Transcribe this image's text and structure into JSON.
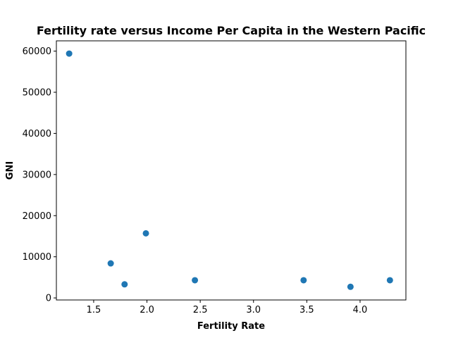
{
  "chart_data": {
    "type": "scatter",
    "title": "Fertility rate versus Income Per Capita in the Western Pacific",
    "xlabel": "Fertility Rate",
    "ylabel": "GNI",
    "xlim": [
      1.15,
      4.43
    ],
    "ylim": [
      -500,
      62500
    ],
    "xticks": [
      1.5,
      2.0,
      2.5,
      3.0,
      3.5,
      4.0
    ],
    "xtick_labels": [
      "1.5",
      "2.0",
      "2.5",
      "3.0",
      "3.5",
      "4.0"
    ],
    "yticks": [
      0,
      10000,
      20000,
      30000,
      40000,
      50000,
      60000
    ],
    "ytick_labels": [
      "0",
      "10000",
      "20000",
      "30000",
      "40000",
      "50000",
      "60000"
    ],
    "grid": false,
    "marker_color": "#1f77b4",
    "points": [
      {
        "x": 1.27,
        "y": 59400
      },
      {
        "x": 1.66,
        "y": 8400
      },
      {
        "x": 1.79,
        "y": 3300
      },
      {
        "x": 1.99,
        "y": 15700
      },
      {
        "x": 2.45,
        "y": 4300
      },
      {
        "x": 3.47,
        "y": 4300
      },
      {
        "x": 3.91,
        "y": 2700
      },
      {
        "x": 4.28,
        "y": 4300
      }
    ]
  }
}
